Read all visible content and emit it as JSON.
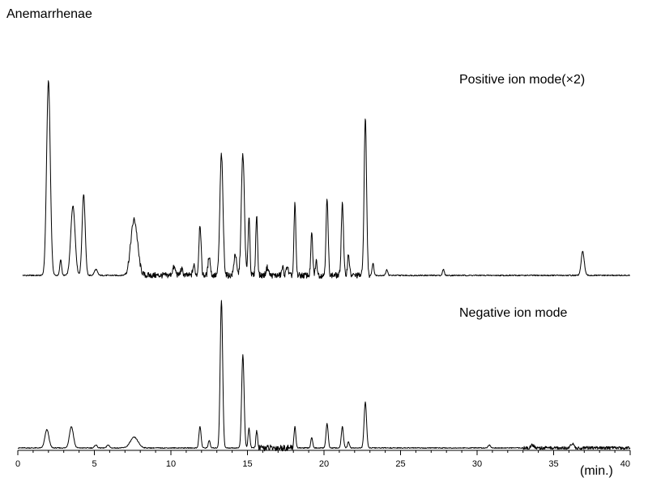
{
  "chart_data": {
    "type": "line",
    "title": "Anemarrhenae",
    "xlabel": "(min.)",
    "ylabel": "",
    "xlim": [
      0,
      40
    ],
    "x_ticks": [
      0,
      5,
      10,
      15,
      20,
      25,
      30,
      35,
      40
    ],
    "grid": false,
    "series": [
      {
        "name": "Positive ion mode(×2)",
        "baseline": 0.02,
        "noise": [
          {
            "from": 7.0,
            "to": 17.0,
            "level": 0.03
          },
          {
            "from": 17.0,
            "to": 23.0,
            "level": 0.03
          }
        ],
        "peaks": [
          {
            "rt": 2.0,
            "height": 0.98,
            "width": 0.12
          },
          {
            "rt": 2.8,
            "height": 0.08,
            "width": 0.06
          },
          {
            "rt": 3.6,
            "height": 0.35,
            "width": 0.14
          },
          {
            "rt": 4.3,
            "height": 0.41,
            "width": 0.1
          },
          {
            "rt": 5.1,
            "height": 0.03,
            "width": 0.1
          },
          {
            "rt": 7.6,
            "height": 0.28,
            "width": 0.22
          },
          {
            "rt": 10.2,
            "height": 0.04,
            "width": 0.1
          },
          {
            "rt": 10.7,
            "height": 0.03,
            "width": 0.08
          },
          {
            "rt": 11.5,
            "height": 0.05,
            "width": 0.07
          },
          {
            "rt": 11.9,
            "height": 0.26,
            "width": 0.07
          },
          {
            "rt": 12.5,
            "height": 0.1,
            "width": 0.07
          },
          {
            "rt": 13.3,
            "height": 0.61,
            "width": 0.1
          },
          {
            "rt": 14.2,
            "height": 0.11,
            "width": 0.08
          },
          {
            "rt": 14.7,
            "height": 0.61,
            "width": 0.1
          },
          {
            "rt": 15.1,
            "height": 0.3,
            "width": 0.06
          },
          {
            "rt": 15.6,
            "height": 0.3,
            "width": 0.06
          },
          {
            "rt": 16.3,
            "height": 0.04,
            "width": 0.08
          },
          {
            "rt": 17.3,
            "height": 0.04,
            "width": 0.06
          },
          {
            "rt": 17.6,
            "height": 0.05,
            "width": 0.06
          },
          {
            "rt": 18.1,
            "height": 0.36,
            "width": 0.06
          },
          {
            "rt": 19.2,
            "height": 0.21,
            "width": 0.06
          },
          {
            "rt": 19.5,
            "height": 0.07,
            "width": 0.06
          },
          {
            "rt": 20.2,
            "height": 0.38,
            "width": 0.07
          },
          {
            "rt": 21.2,
            "height": 0.37,
            "width": 0.07
          },
          {
            "rt": 21.6,
            "height": 0.11,
            "width": 0.06
          },
          {
            "rt": 22.7,
            "height": 0.79,
            "width": 0.08
          },
          {
            "rt": 23.2,
            "height": 0.06,
            "width": 0.06
          },
          {
            "rt": 24.1,
            "height": 0.03,
            "width": 0.06
          },
          {
            "rt": 27.8,
            "height": 0.03,
            "width": 0.06
          },
          {
            "rt": 36.9,
            "height": 0.12,
            "width": 0.1
          }
        ]
      },
      {
        "name": "Negative ion mode",
        "baseline": 0.02,
        "noise": [
          {
            "from": 15.5,
            "to": 18.0,
            "level": 0.04
          },
          {
            "from": 33.0,
            "to": 40.0,
            "level": 0.02
          }
        ],
        "peaks": [
          {
            "rt": 1.9,
            "height": 0.12,
            "width": 0.13
          },
          {
            "rt": 3.5,
            "height": 0.14,
            "width": 0.13
          },
          {
            "rt": 5.1,
            "height": 0.02,
            "width": 0.08
          },
          {
            "rt": 5.9,
            "height": 0.02,
            "width": 0.08
          },
          {
            "rt": 7.6,
            "height": 0.07,
            "width": 0.25
          },
          {
            "rt": 11.9,
            "height": 0.14,
            "width": 0.07
          },
          {
            "rt": 12.5,
            "height": 0.05,
            "width": 0.06
          },
          {
            "rt": 13.3,
            "height": 0.97,
            "width": 0.08
          },
          {
            "rt": 14.7,
            "height": 0.61,
            "width": 0.08
          },
          {
            "rt": 15.1,
            "height": 0.13,
            "width": 0.06
          },
          {
            "rt": 15.6,
            "height": 0.1,
            "width": 0.06
          },
          {
            "rt": 18.1,
            "height": 0.14,
            "width": 0.06
          },
          {
            "rt": 19.2,
            "height": 0.07,
            "width": 0.06
          },
          {
            "rt": 20.2,
            "height": 0.16,
            "width": 0.07
          },
          {
            "rt": 21.2,
            "height": 0.14,
            "width": 0.07
          },
          {
            "rt": 21.6,
            "height": 0.04,
            "width": 0.06
          },
          {
            "rt": 22.7,
            "height": 0.3,
            "width": 0.08
          },
          {
            "rt": 30.8,
            "height": 0.02,
            "width": 0.08
          },
          {
            "rt": 33.6,
            "height": 0.02,
            "width": 0.1
          },
          {
            "rt": 36.2,
            "height": 0.03,
            "width": 0.1
          }
        ]
      }
    ]
  }
}
